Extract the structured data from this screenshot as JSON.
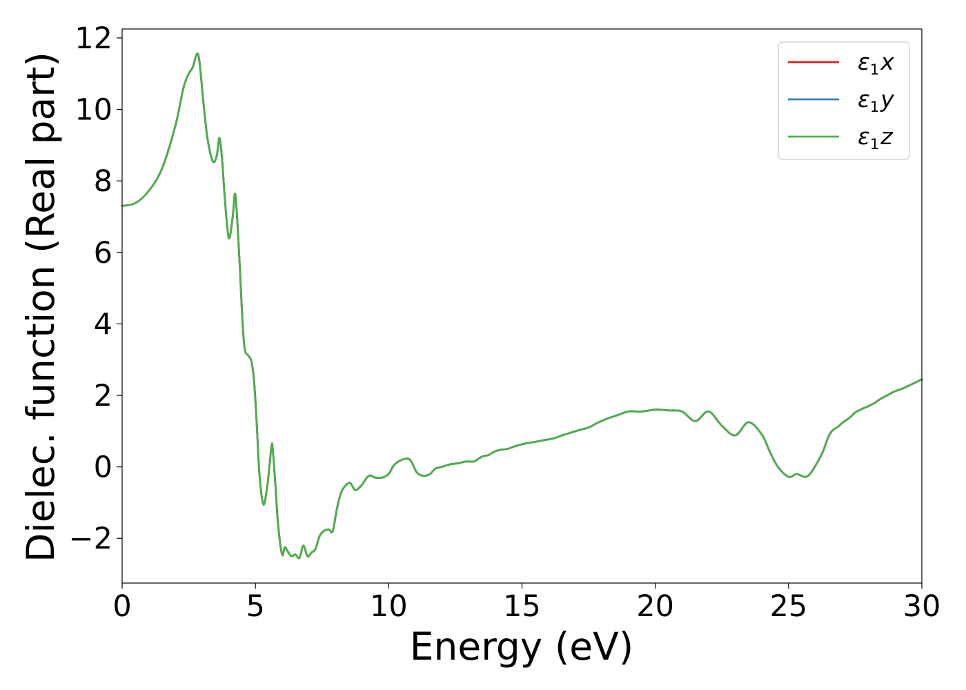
{
  "chart_data": {
    "type": "line",
    "title": "",
    "xlabel": "Energy (eV)",
    "ylabel": "Dielec. function (Real part)",
    "xlim": [
      0,
      30
    ],
    "ylim": [
      -3.25,
      12.25
    ],
    "xticks": [
      0,
      5,
      10,
      15,
      20,
      25,
      30
    ],
    "xtick_labels": [
      "0",
      "5",
      "10",
      "15",
      "20",
      "25",
      "30"
    ],
    "yticks": [
      -2,
      0,
      2,
      4,
      6,
      8,
      10,
      12
    ],
    "ytick_labels": [
      "−2",
      "0",
      "2",
      "4",
      "6",
      "8",
      "10",
      "12"
    ],
    "grid": false,
    "legend_position": "top-right",
    "series": [
      {
        "name": "ε₁x",
        "legend_main": "ε",
        "legend_sub": "1",
        "legend_var": "x",
        "color": "#e41a1c"
      },
      {
        "name": "ε₁y",
        "legend_main": "ε",
        "legend_sub": "1",
        "legend_var": "y",
        "color": "#377eb8"
      },
      {
        "name": "ε₁z",
        "legend_main": "ε",
        "legend_sub": "1",
        "legend_var": "z",
        "color": "#4daf4a"
      }
    ],
    "x": [
      0,
      0.5,
      1.0,
      1.5,
      2.0,
      2.3,
      2.5,
      2.65,
      2.8,
      2.9,
      3.05,
      3.2,
      3.4,
      3.55,
      3.65,
      3.75,
      3.85,
      4.0,
      4.15,
      4.25,
      4.4,
      4.5,
      4.6,
      4.75,
      4.85,
      4.95,
      5.05,
      5.15,
      5.3,
      5.45,
      5.6,
      5.65,
      5.75,
      5.85,
      6.0,
      6.1,
      6.2,
      6.35,
      6.5,
      6.65,
      6.8,
      6.95,
      7.1,
      7.25,
      7.4,
      7.55,
      7.75,
      7.9,
      8.05,
      8.2,
      8.35,
      8.55,
      8.75,
      9.0,
      9.25,
      9.5,
      9.75,
      10.0,
      10.2,
      10.5,
      10.8,
      11.05,
      11.3,
      11.55,
      11.75,
      12.0,
      12.3,
      12.6,
      12.9,
      13.2,
      13.35,
      13.55,
      13.75,
      13.95,
      14.2,
      14.45,
      14.75,
      15.1,
      15.5,
      15.85,
      16.2,
      16.5,
      16.8,
      17.1,
      17.5,
      17.8,
      18.2,
      18.6,
      19.0,
      19.5,
      20.0,
      20.5,
      21.0,
      21.5,
      22.0,
      22.5,
      23.0,
      23.5,
      24.0,
      24.3,
      24.6,
      25.0,
      25.3,
      25.6,
      25.8,
      26.1,
      26.3,
      26.5,
      26.65,
      26.85,
      27.05,
      27.3,
      27.5,
      27.75,
      28.0,
      28.25,
      28.45,
      28.7,
      28.95,
      29.3,
      29.65,
      30.0
    ],
    "values": [
      7.3,
      7.38,
      7.72,
      8.35,
      9.55,
      10.6,
      11.0,
      11.18,
      11.55,
      11.35,
      10.2,
      9.2,
      8.55,
      8.7,
      9.2,
      8.6,
      7.55,
      6.4,
      7.0,
      7.6,
      5.8,
      4.25,
      3.3,
      3.1,
      2.95,
      2.4,
      1.2,
      -0.2,
      -1.05,
      -0.5,
      0.55,
      0.5,
      -0.5,
      -1.6,
      -2.45,
      -2.25,
      -2.35,
      -2.5,
      -2.45,
      -2.55,
      -2.2,
      -2.5,
      -2.4,
      -2.3,
      -1.95,
      -1.8,
      -1.75,
      -1.8,
      -1.2,
      -0.75,
      -0.55,
      -0.45,
      -0.65,
      -0.5,
      -0.25,
      -0.3,
      -0.3,
      -0.2,
      0.05,
      0.2,
      0.2,
      -0.15,
      -0.25,
      -0.2,
      -0.05,
      0.0,
      0.07,
      0.1,
      0.15,
      0.15,
      0.22,
      0.3,
      0.33,
      0.42,
      0.48,
      0.5,
      0.58,
      0.65,
      0.7,
      0.75,
      0.8,
      0.88,
      0.95,
      1.02,
      1.1,
      1.22,
      1.35,
      1.45,
      1.55,
      1.55,
      1.6,
      1.58,
      1.55,
      1.28,
      1.55,
      1.15,
      0.88,
      1.25,
      0.9,
      0.42,
      0.0,
      -0.28,
      -0.2,
      -0.28,
      -0.2,
      0.15,
      0.45,
      0.85,
      1.02,
      1.12,
      1.25,
      1.38,
      1.52,
      1.62,
      1.7,
      1.8,
      1.9,
      2.0,
      2.1,
      2.2,
      2.32,
      2.45
    ]
  }
}
